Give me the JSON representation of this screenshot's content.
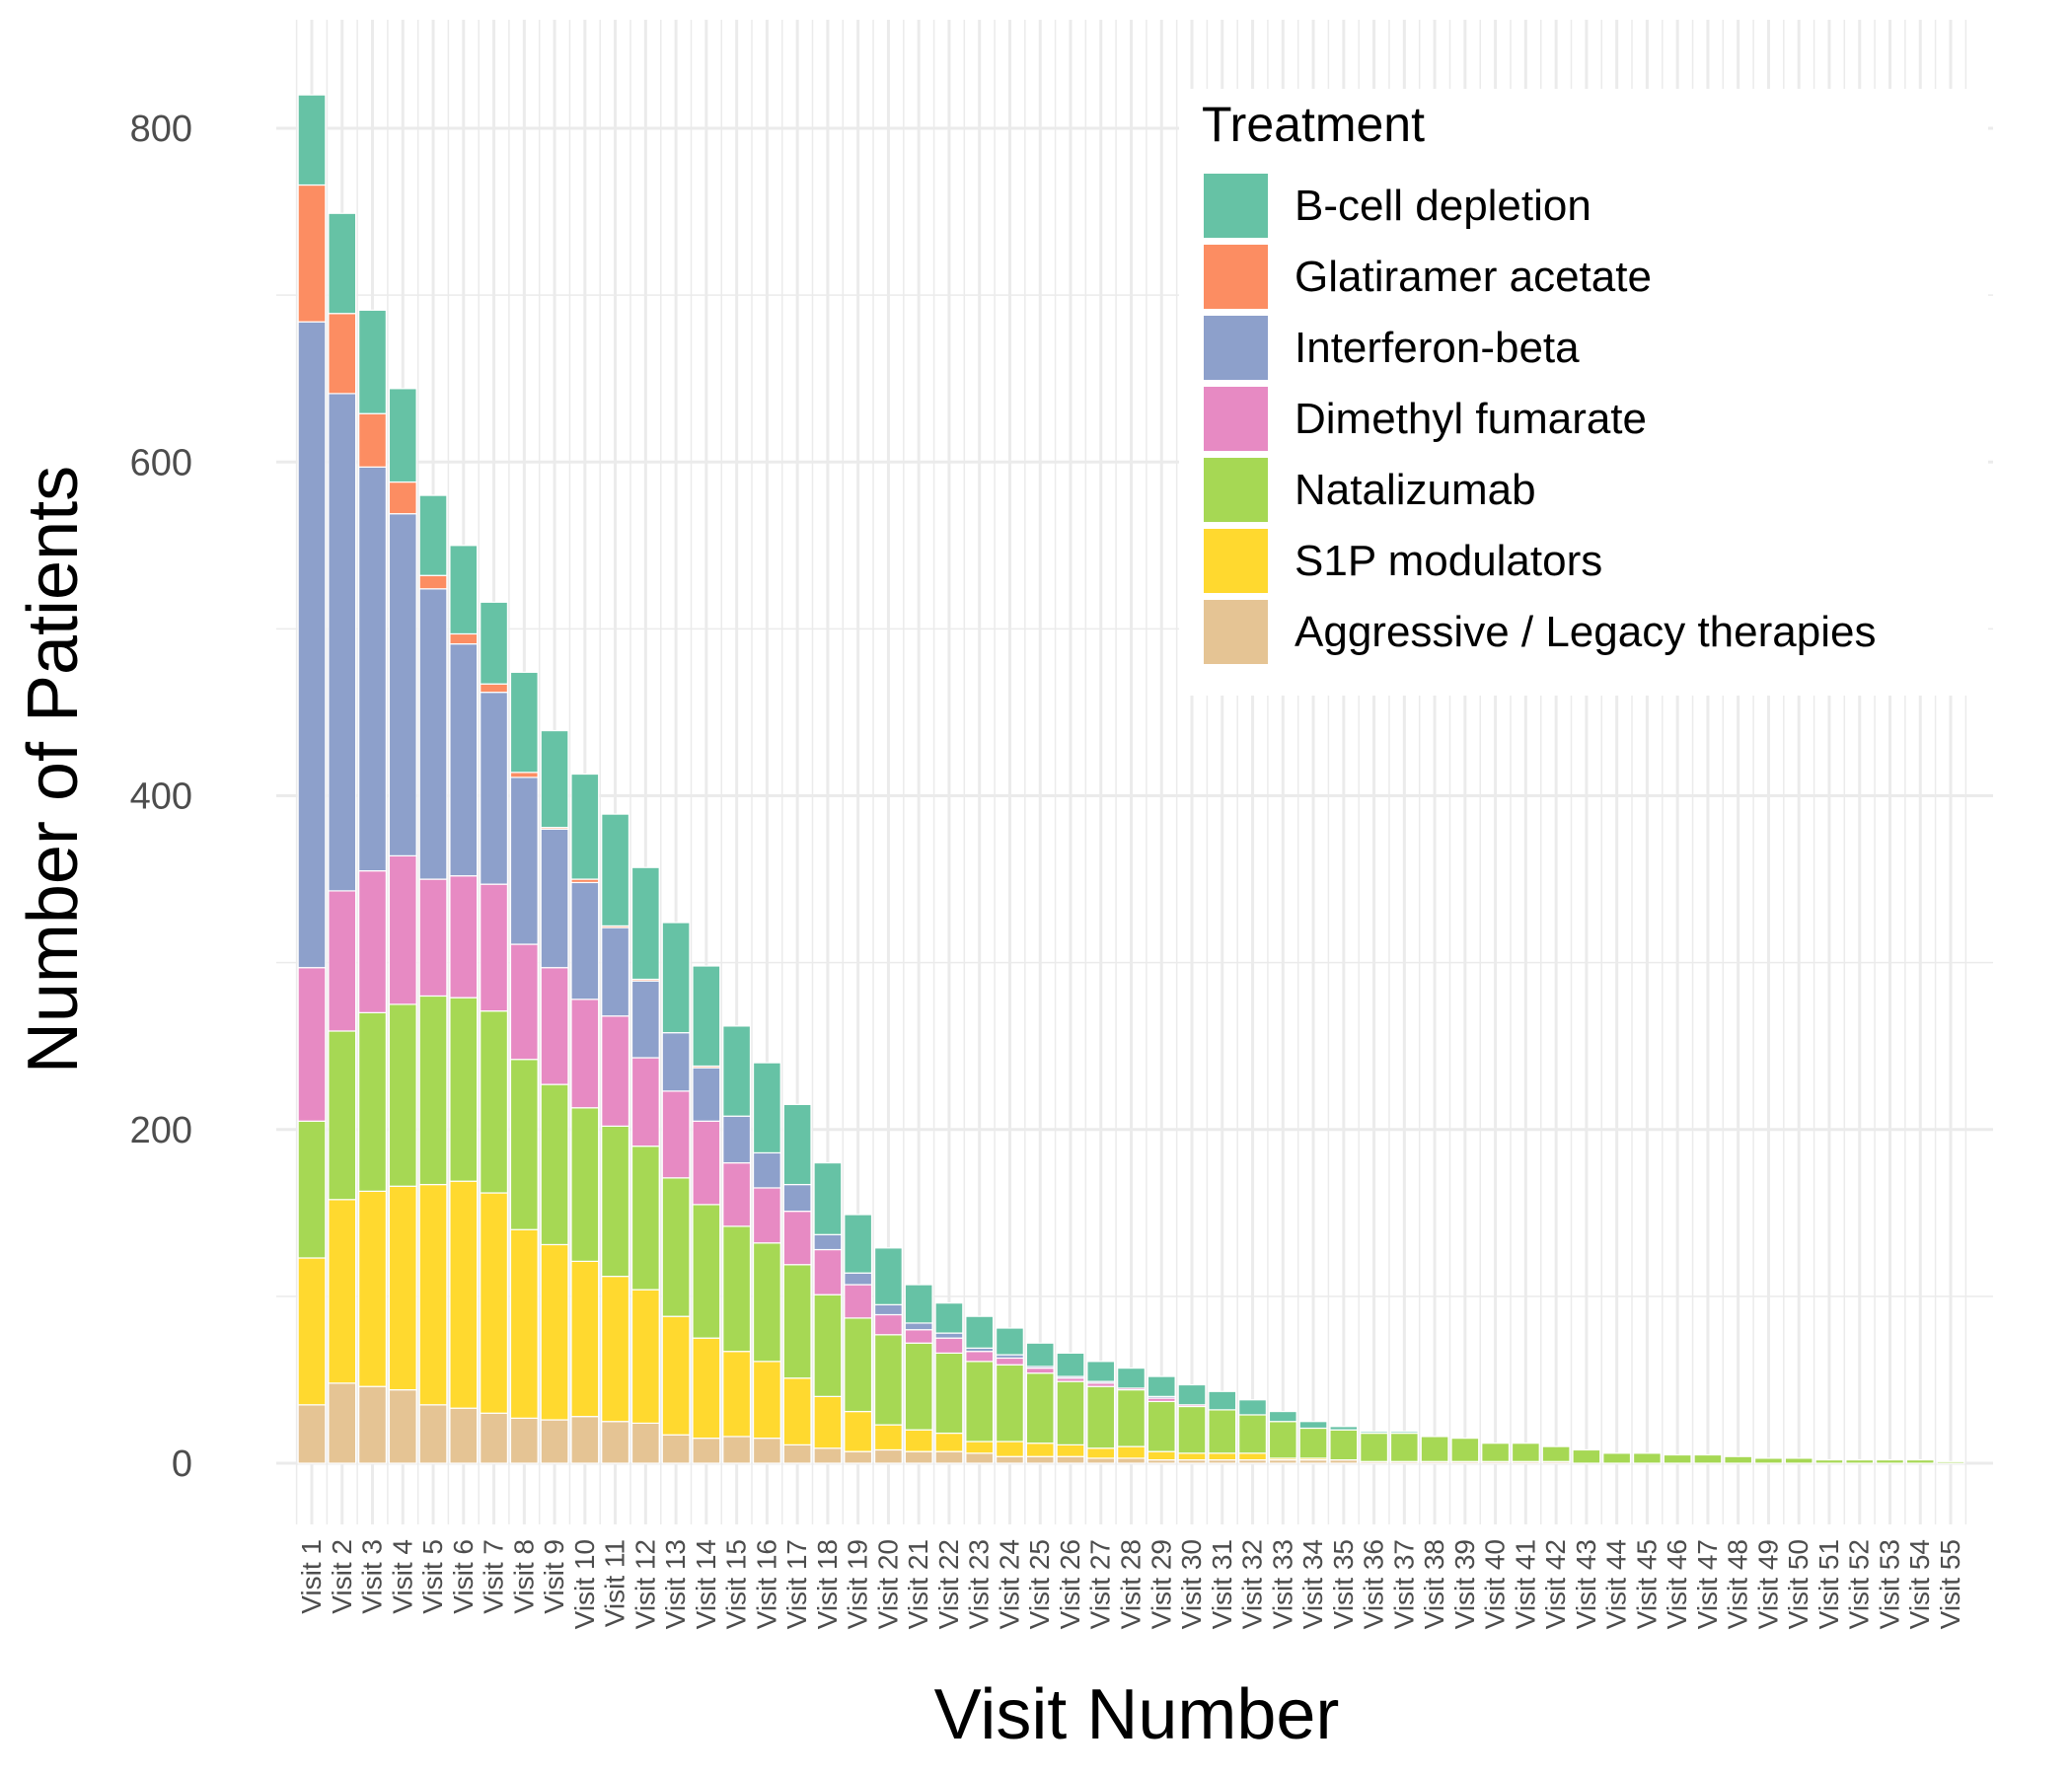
{
  "chart_data": {
    "type": "bar",
    "stacked": true,
    "xlabel": "Visit Number",
    "ylabel": "Number of Patients",
    "ylim": [
      -40,
      835
    ],
    "yticks": [
      0,
      200,
      400,
      600,
      800
    ],
    "legend_title": "Treatment",
    "legend_position": "top-right",
    "categories": [
      "Visit 1",
      "Visit 2",
      "Visit 3",
      "Visit 4",
      "Visit 5",
      "Visit 6",
      "Visit 7",
      "Visit 8",
      "Visit 9",
      "Visit 10",
      "Visit 11",
      "Visit 12",
      "Visit 13",
      "Visit 14",
      "Visit 15",
      "Visit 16",
      "Visit 17",
      "Visit 18",
      "Visit 19",
      "Visit 20",
      "Visit 21",
      "Visit 22",
      "Visit 23",
      "Visit 24",
      "Visit 25",
      "Visit 26",
      "Visit 27",
      "Visit 28",
      "Visit 29",
      "Visit 30",
      "Visit 31",
      "Visit 32",
      "Visit 33",
      "Visit 34",
      "Visit 35",
      "Visit 36",
      "Visit 37",
      "Visit 38",
      "Visit 39",
      "Visit 40",
      "Visit 41",
      "Visit 42",
      "Visit 43",
      "Visit 44",
      "Visit 45",
      "Visit 46",
      "Visit 47",
      "Visit 48",
      "Visit 49",
      "Visit 50",
      "Visit 51",
      "Visit 52",
      "Visit 53",
      "Visit 54",
      "Visit 55"
    ],
    "series": [
      {
        "name": "Aggressive / Legacy therapies",
        "color": "#E5C494",
        "values": [
          35,
          48,
          46,
          44,
          35,
          33,
          30,
          27,
          26,
          28,
          25,
          24,
          17,
          15,
          16,
          15,
          11,
          9,
          7,
          8,
          7,
          7,
          6,
          4,
          4,
          4,
          3,
          3,
          2,
          2,
          2,
          2,
          2,
          2,
          2,
          1,
          1,
          1,
          1,
          1,
          1,
          1,
          0,
          0,
          0,
          0,
          0,
          0,
          0,
          0,
          0,
          0,
          0,
          0,
          0
        ]
      },
      {
        "name": "S1P modulators",
        "color": "#FFD92F",
        "values": [
          88,
          110,
          117,
          122,
          132,
          136,
          132,
          113,
          105,
          93,
          87,
          80,
          71,
          60,
          51,
          46,
          40,
          31,
          24,
          15,
          13,
          11,
          7,
          9,
          8,
          7,
          6,
          7,
          5,
          4,
          4,
          4,
          1,
          1,
          0,
          0,
          0,
          0,
          0,
          0,
          0,
          0,
          0,
          0,
          0,
          0,
          0,
          0,
          0,
          0,
          0,
          0,
          0,
          0,
          0
        ]
      },
      {
        "name": "Natalizumab",
        "color": "#A6D854",
        "values": [
          82,
          101,
          107,
          109,
          113,
          110,
          109,
          102,
          96,
          92,
          90,
          86,
          83,
          80,
          75,
          71,
          68,
          61,
          56,
          54,
          52,
          48,
          48,
          46,
          42,
          38,
          37,
          34,
          30,
          28,
          26,
          23,
          22,
          18,
          18,
          17,
          17,
          15,
          14,
          11,
          11,
          9,
          8,
          6,
          6,
          5,
          5,
          4,
          3,
          3,
          2,
          2,
          2,
          2,
          1
        ]
      },
      {
        "name": "Dimethyl fumarate",
        "color": "#E78AC3",
        "values": [
          92,
          84,
          85,
          89,
          70,
          73,
          76,
          69,
          70,
          65,
          66,
          53,
          52,
          50,
          38,
          33,
          32,
          27,
          20,
          12,
          8,
          9,
          6,
          4,
          3,
          2,
          2,
          1,
          2,
          1,
          0,
          0,
          0,
          0,
          0,
          0,
          0,
          0,
          0,
          0,
          0,
          0,
          0,
          0,
          0,
          0,
          0,
          0,
          0,
          0,
          0,
          0,
          0,
          0,
          0
        ]
      },
      {
        "name": "Interferon-beta",
        "color": "#8DA0CB",
        "values": [
          387,
          298,
          242,
          205,
          174,
          139,
          115,
          100,
          83,
          70,
          53,
          46,
          35,
          32,
          28,
          21,
          16,
          9,
          7,
          6,
          4,
          3,
          2,
          2,
          1,
          1,
          1,
          0,
          1,
          0,
          0,
          0,
          0,
          0,
          0,
          0,
          0,
          0,
          0,
          0,
          0,
          0,
          0,
          0,
          0,
          0,
          0,
          0,
          0,
          0,
          0,
          0,
          0,
          0,
          0
        ]
      },
      {
        "name": "Glatiramer acetate",
        "color": "#FC8D62",
        "values": [
          82,
          48,
          32,
          19,
          8,
          6,
          5,
          3,
          1,
          2,
          1,
          1,
          0,
          1,
          0,
          0,
          0,
          0,
          0,
          0,
          0,
          0,
          0,
          0,
          0,
          0,
          0,
          0,
          0,
          0,
          0,
          0,
          0,
          0,
          0,
          0,
          0,
          0,
          0,
          0,
          0,
          0,
          0,
          0,
          0,
          0,
          0,
          0,
          0,
          0,
          0,
          0,
          0,
          0,
          0
        ]
      },
      {
        "name": "B-cell depletion",
        "color": "#66C2A5",
        "values": [
          54,
          60,
          62,
          56,
          48,
          53,
          49,
          60,
          58,
          63,
          67,
          67,
          66,
          60,
          54,
          54,
          48,
          43,
          35,
          34,
          23,
          18,
          19,
          16,
          14,
          14,
          12,
          12,
          12,
          12,
          11,
          9,
          6,
          4,
          2,
          1,
          1,
          0,
          0,
          0,
          0,
          0,
          0,
          0,
          0,
          0,
          0,
          0,
          0,
          0,
          0,
          0,
          0,
          0,
          0
        ]
      }
    ],
    "legend_order": [
      "B-cell depletion",
      "Glatiramer acetate",
      "Interferon-beta",
      "Dimethyl fumarate",
      "Natalizumab",
      "S1P modulators",
      "Aggressive / Legacy therapies"
    ]
  }
}
